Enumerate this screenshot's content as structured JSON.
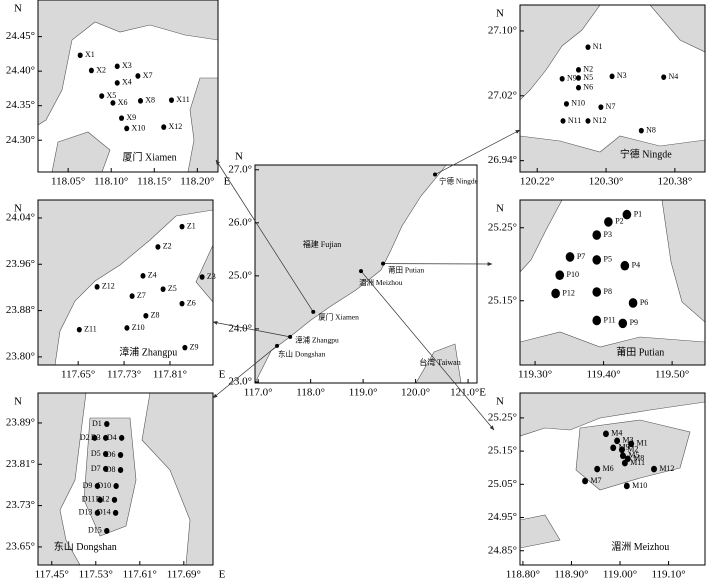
{
  "north": "N",
  "east": "E",
  "main": {
    "xlim": [
      116.94,
      121.17
    ],
    "ylim": [
      22.98,
      27.09
    ],
    "xticks": [
      {
        "value": 117,
        "label": "117.0°"
      },
      {
        "value": 118,
        "label": "118.0°"
      },
      {
        "value": 119,
        "label": "119.0°"
      },
      {
        "value": 120,
        "label": "120.0°"
      },
      {
        "value": 121,
        "label": "121.0°E"
      }
    ],
    "yticks": [
      {
        "value": 27,
        "label": "27.0°"
      },
      {
        "value": 26,
        "label": "26.0°"
      },
      {
        "value": 25,
        "label": "25.0°"
      },
      {
        "value": 24,
        "label": "24.0°"
      },
      {
        "value": 23,
        "label": "23.0°"
      }
    ],
    "sites": [
      {
        "name": "宁德 Ningde",
        "lon": 120.37,
        "lat": 26.91
      },
      {
        "name": "莆田 Putian",
        "lon": 119.38,
        "lat": 25.23
      },
      {
        "name": "湄洲 Meizhou",
        "lon": 118.96,
        "lat": 25.09
      },
      {
        "name": "厦门 Xiamen",
        "lon": 118.05,
        "lat": 24.32
      },
      {
        "name": "漳浦 Zhangpu",
        "lon": 117.61,
        "lat": 23.85
      },
      {
        "name": "东山 Dongshan",
        "lon": 117.36,
        "lat": 23.68
      }
    ],
    "regions": [
      "福建 Fujian",
      "台湾 Taiwan"
    ]
  },
  "panels": [
    {
      "name": "厦门 Xiamen",
      "xlim": [
        118.015,
        118.224
      ],
      "ylim": [
        24.254,
        24.503
      ],
      "xticks": [
        {
          "value": 118.05,
          "label": "118.05°"
        },
        {
          "value": 118.1,
          "label": "118.10°"
        },
        {
          "value": 118.15,
          "label": "118.15°"
        },
        {
          "value": 118.2,
          "label": "118.20°"
        }
      ],
      "yticks": [
        {
          "value": 24.45,
          "label": "24.45°"
        },
        {
          "value": 24.4,
          "label": "24.40°"
        },
        {
          "value": 24.35,
          "label": "24.35°"
        },
        {
          "value": 24.3,
          "label": "24.30°"
        }
      ],
      "stations": [
        {
          "label": "X1",
          "lon": 118.064,
          "lat": 24.423
        },
        {
          "label": "X2",
          "lon": 118.077,
          "lat": 24.401
        },
        {
          "label": "X3",
          "lon": 118.107,
          "lat": 24.407
        },
        {
          "label": "X4",
          "lon": 118.107,
          "lat": 24.383
        },
        {
          "label": "X5",
          "lon": 118.089,
          "lat": 24.364
        },
        {
          "label": "X6",
          "lon": 118.102,
          "lat": 24.354
        },
        {
          "label": "X7",
          "lon": 118.131,
          "lat": 24.393
        },
        {
          "label": "X8",
          "lon": 118.134,
          "lat": 24.357
        },
        {
          "label": "X9",
          "lon": 118.112,
          "lat": 24.332
        },
        {
          "label": "X10",
          "lon": 118.118,
          "lat": 24.317
        },
        {
          "label": "X11",
          "lon": 118.17,
          "lat": 24.358
        },
        {
          "label": "X12",
          "lon": 118.161,
          "lat": 24.319
        }
      ]
    },
    {
      "name": "宁德 Ningde",
      "xlim": [
        120.2,
        120.415
      ],
      "ylim": [
        26.926,
        27.132
      ],
      "xticks": [
        {
          "value": 120.22,
          "label": "120.22°"
        },
        {
          "value": 120.3,
          "label": "120.30°"
        },
        {
          "value": 120.38,
          "label": "120.38°"
        }
      ],
      "yticks": [
        {
          "value": 27.1,
          "label": "27.10°"
        },
        {
          "value": 27.02,
          "label": "27.02°"
        },
        {
          "value": 26.94,
          "label": "26.94°"
        }
      ],
      "stations": [
        {
          "label": "N1",
          "lon": 120.279,
          "lat": 27.08
        },
        {
          "label": "N2",
          "lon": 120.268,
          "lat": 27.052
        },
        {
          "label": "N3",
          "lon": 120.307,
          "lat": 27.044
        },
        {
          "label": "N4",
          "lon": 120.367,
          "lat": 27.043
        },
        {
          "label": "N5",
          "lon": 120.268,
          "lat": 27.042
        },
        {
          "label": "N6",
          "lon": 120.268,
          "lat": 27.03
        },
        {
          "label": "N7",
          "lon": 120.294,
          "lat": 27.006
        },
        {
          "label": "N8",
          "lon": 120.341,
          "lat": 26.977
        },
        {
          "label": "N9",
          "lon": 120.249,
          "lat": 27.041
        },
        {
          "label": "N10",
          "lon": 120.254,
          "lat": 27.01
        },
        {
          "label": "N11",
          "lon": 120.25,
          "lat": 26.989
        },
        {
          "label": "N12",
          "lon": 120.279,
          "lat": 26.989
        }
      ]
    },
    {
      "name": "漳浦 Zhangpu",
      "xlim": [
        117.58,
        117.885
      ],
      "ylim": [
        23.786,
        24.071
      ],
      "xticks": [
        {
          "value": 117.65,
          "label": "117.65°"
        },
        {
          "value": 117.73,
          "label": "117.73°"
        },
        {
          "value": 117.81,
          "label": "117.81°"
        }
      ],
      "yticks": [
        {
          "value": 24.04,
          "label": "24.04°"
        },
        {
          "value": 23.96,
          "label": "23.96°"
        },
        {
          "value": 23.88,
          "label": "23.88°"
        },
        {
          "value": 23.8,
          "label": "23.80°"
        }
      ],
      "stations": [
        {
          "label": "Z1",
          "lon": 117.831,
          "lat": 24.025
        },
        {
          "label": "Z2",
          "lon": 117.789,
          "lat": 23.99
        },
        {
          "label": "Z3",
          "lon": 117.866,
          "lat": 23.938
        },
        {
          "label": "Z4",
          "lon": 117.763,
          "lat": 23.94
        },
        {
          "label": "Z5",
          "lon": 117.798,
          "lat": 23.917
        },
        {
          "label": "Z6",
          "lon": 117.831,
          "lat": 23.892
        },
        {
          "label": "Z7",
          "lon": 117.744,
          "lat": 23.905
        },
        {
          "label": "Z8",
          "lon": 117.768,
          "lat": 23.871
        },
        {
          "label": "Z9",
          "lon": 117.836,
          "lat": 23.816
        },
        {
          "label": "Z10",
          "lon": 117.735,
          "lat": 23.85
        },
        {
          "label": "Z11",
          "lon": 117.652,
          "lat": 23.847
        },
        {
          "label": "Z12",
          "lon": 117.683,
          "lat": 23.921
        }
      ]
    },
    {
      "name": "莆田 Putian",
      "xlim": [
        119.278,
        119.548
      ],
      "ylim": [
        25.062,
        25.288
      ],
      "xticks": [
        {
          "value": 119.3,
          "label": "119.30°"
        },
        {
          "value": 119.4,
          "label": "119.40°"
        },
        {
          "value": 119.5,
          "label": "119.50°"
        }
      ],
      "yticks": [
        {
          "value": 25.25,
          "label": "25.25°"
        },
        {
          "value": 25.15,
          "label": "25.15°"
        }
      ],
      "stations": [
        {
          "label": "P1",
          "lon": 119.434,
          "lat": 25.268
        },
        {
          "label": "P2",
          "lon": 119.407,
          "lat": 25.258
        },
        {
          "label": "P3",
          "lon": 119.39,
          "lat": 25.24
        },
        {
          "label": "P4",
          "lon": 119.431,
          "lat": 25.198
        },
        {
          "label": "P5",
          "lon": 119.39,
          "lat": 25.206
        },
        {
          "label": "P6",
          "lon": 119.443,
          "lat": 25.147
        },
        {
          "label": "P7",
          "lon": 119.351,
          "lat": 25.21
        },
        {
          "label": "P8",
          "lon": 119.39,
          "lat": 25.162
        },
        {
          "label": "P9",
          "lon": 119.428,
          "lat": 25.119
        },
        {
          "label": "P10",
          "lon": 119.336,
          "lat": 25.185
        },
        {
          "label": "P11",
          "lon": 119.39,
          "lat": 25.123
        },
        {
          "label": "P12",
          "lon": 119.33,
          "lat": 25.16
        }
      ]
    },
    {
      "name": "东山 Dongshan",
      "xlim": [
        117.425,
        117.743
      ],
      "ylim": [
        23.615,
        23.948
      ],
      "xticks": [
        {
          "value": 117.45,
          "label": "117.45°"
        },
        {
          "value": 117.53,
          "label": "117.53°"
        },
        {
          "value": 117.61,
          "label": "117.61°"
        },
        {
          "value": 117.69,
          "label": "117.69°"
        }
      ],
      "yticks": [
        {
          "value": 23.89,
          "label": "23.89°"
        },
        {
          "value": 23.81,
          "label": "23.81°"
        },
        {
          "value": 23.73,
          "label": "23.73°"
        },
        {
          "value": 23.65,
          "label": "23.65°"
        }
      ],
      "stations": [
        {
          "label": "D1",
          "lon": 117.55,
          "lat": 23.888
        },
        {
          "label": "D2",
          "lon": 117.528,
          "lat": 23.861
        },
        {
          "label": "D3",
          "lon": 117.548,
          "lat": 23.861
        },
        {
          "label": "D4",
          "lon": 117.577,
          "lat": 23.861
        },
        {
          "label": "D5",
          "lon": 117.548,
          "lat": 23.83
        },
        {
          "label": "D6",
          "lon": 117.575,
          "lat": 23.828
        },
        {
          "label": "D7",
          "lon": 117.548,
          "lat": 23.801
        },
        {
          "label": "D8",
          "lon": 117.575,
          "lat": 23.799
        },
        {
          "label": "D9",
          "lon": 117.533,
          "lat": 23.768
        },
        {
          "label": "D10",
          "lon": 117.567,
          "lat": 23.768
        },
        {
          "label": "D11",
          "lon": 117.538,
          "lat": 23.741
        },
        {
          "label": "D12",
          "lon": 117.564,
          "lat": 23.741
        },
        {
          "label": "D13",
          "lon": 117.533,
          "lat": 23.716
        },
        {
          "label": "D14",
          "lon": 117.566,
          "lat": 23.716
        },
        {
          "label": "D15",
          "lon": 117.55,
          "lat": 23.681
        }
      ]
    },
    {
      "name": "湄洲 Meizhou",
      "xlim": [
        118.794,
        119.175
      ],
      "ylim": [
        24.807,
        25.325
      ],
      "xticks": [
        {
          "value": 118.8,
          "label": "118.80°"
        },
        {
          "value": 118.9,
          "label": "118.90°"
        },
        {
          "value": 119,
          "label": "119.00°"
        },
        {
          "value": 119.1,
          "label": "119.10°"
        }
      ],
      "yticks": [
        {
          "value": 25.25,
          "label": "25.25°"
        },
        {
          "value": 25.15,
          "label": "25.15°"
        },
        {
          "value": 25.05,
          "label": "25.05°"
        },
        {
          "value": 24.95,
          "label": "24.95°"
        },
        {
          "value": 24.85,
          "label": "24.85°"
        }
      ],
      "stations": [
        {
          "label": "M1",
          "lon": 119.023,
          "lat": 25.172
        },
        {
          "label": "M2",
          "lon": 119.004,
          "lat": 25.154
        },
        {
          "label": "M3",
          "lon": 118.994,
          "lat": 25.181
        },
        {
          "label": "M4",
          "lon": 118.971,
          "lat": 25.202
        },
        {
          "label": "M5",
          "lon": 119.006,
          "lat": 25.136
        },
        {
          "label": "M6",
          "lon": 118.953,
          "lat": 25.096
        },
        {
          "label": "M7",
          "lon": 118.928,
          "lat": 25.06
        },
        {
          "label": "M8",
          "lon": 119.016,
          "lat": 25.127
        },
        {
          "label": "M9",
          "lon": 118.986,
          "lat": 25.16
        },
        {
          "label": "M10",
          "lon": 119.014,
          "lat": 25.045
        },
        {
          "label": "M11",
          "lon": 119.01,
          "lat": 25.114
        },
        {
          "label": "M12",
          "lon": 119.07,
          "lat": 25.096
        }
      ]
    }
  ]
}
